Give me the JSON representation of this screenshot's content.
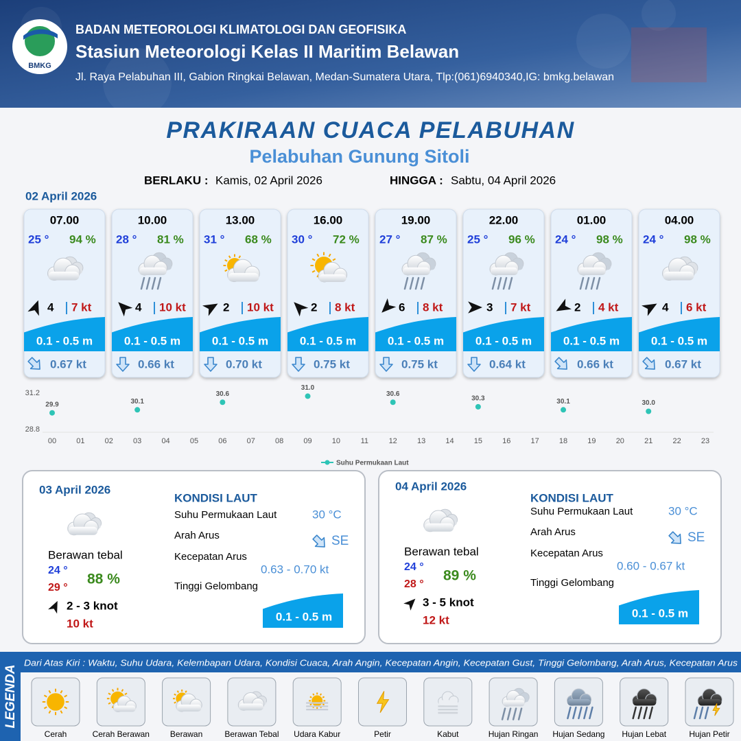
{
  "header": {
    "logo_text": "BMKG",
    "agency": "BADAN METEOROLOGI KLIMATOLOGI DAN GEOFISIKA",
    "station": "Stasiun Meteorologi Kelas II Maritim Belawan",
    "address": "Jl. Raya Pelabuhan III, Gabion Ringkai Belawan, Medan-Sumatera Utara, Tlp:(061)6940340,IG: bmkg.belawan"
  },
  "title": "PRAKIRAAN CUACA PELABUHAN",
  "subtitle": "Pelabuhan Gunung Sitoli",
  "valid_from_label": "BERLAKU :",
  "valid_from": "Kamis, 02 April 2026",
  "valid_to_label": "HINGGA :",
  "valid_to": "Sabtu, 04 April 2026",
  "forecast_date": "02 April 2026",
  "forecasts": [
    {
      "time": "07.00",
      "temp": "25 °",
      "humidity": "94 %",
      "wind": "4",
      "gust": "7 kt",
      "wave": "0.1 - 0.5 m",
      "current": "0.67 kt"
    },
    {
      "time": "10.00",
      "temp": "28 °",
      "humidity": "81 %",
      "wind": "4",
      "gust": "10 kt",
      "wave": "0.1 - 0.5 m",
      "current": "0.66 kt"
    },
    {
      "time": "13.00",
      "temp": "31 °",
      "humidity": "68 %",
      "wind": "2",
      "gust": "10 kt",
      "wave": "0.1 - 0.5 m",
      "current": "0.70 kt"
    },
    {
      "time": "16.00",
      "temp": "30 °",
      "humidity": "72 %",
      "wind": "2",
      "gust": "8 kt",
      "wave": "0.1 - 0.5 m",
      "current": "0.75 kt"
    },
    {
      "time": "19.00",
      "temp": "27 °",
      "humidity": "87 %",
      "wind": "6",
      "gust": "8 kt",
      "wave": "0.1 - 0.5 m",
      "current": "0.75 kt"
    },
    {
      "time": "22.00",
      "temp": "25 °",
      "humidity": "96 %",
      "wind": "3",
      "gust": "7 kt",
      "wave": "0.1 - 0.5 m",
      "current": "0.64 kt"
    },
    {
      "time": "01.00",
      "temp": "24 °",
      "humidity": "98 %",
      "wind": "2",
      "gust": "4 kt",
      "wave": "0.1 - 0.5 m",
      "current": "0.66 kt"
    },
    {
      "time": "04.00",
      "temp": "24 °",
      "humidity": "98 %",
      "wind": "4",
      "gust": "6 kt",
      "wave": "0.1 - 0.5 m",
      "current": "0.67 kt"
    }
  ],
  "chart_data": {
    "type": "scatter",
    "x": [
      0,
      3,
      6,
      9,
      12,
      15,
      18,
      21
    ],
    "series": [
      {
        "name": "Suhu Permukaan Laut",
        "color": "#2ec4b6",
        "values": [
          29.9,
          30.1,
          30.6,
          31.0,
          30.6,
          30.3,
          30.1,
          30.0
        ],
        "value_labels": [
          "29.9",
          "30.1",
          "30.6",
          "31.0",
          "30.6",
          "30.3",
          "30.1",
          "30.0"
        ]
      }
    ],
    "xlim": [
      0,
      23
    ],
    "xticks": [
      {
        "value": 0,
        "label": "00"
      },
      {
        "value": 1,
        "label": "01"
      },
      {
        "value": 2,
        "label": "02"
      },
      {
        "value": 3,
        "label": "03"
      },
      {
        "value": 4,
        "label": "04"
      },
      {
        "value": 5,
        "label": "05"
      },
      {
        "value": 6,
        "label": "06"
      },
      {
        "value": 7,
        "label": "07"
      },
      {
        "value": 8,
        "label": "08"
      },
      {
        "value": 9,
        "label": "09"
      },
      10,
      11,
      12,
      13,
      14,
      15,
      16,
      17,
      18,
      19,
      20,
      21,
      22,
      23
    ],
    "ylim": [
      28.8,
      31.2
    ],
    "yticks": [
      28.8,
      31.2
    ],
    "grid": false,
    "legend": "bottom"
  },
  "days": [
    {
      "date": "03 April 2026",
      "condition": "Berawan tebal",
      "temp_min": "24 °",
      "temp_max": "29 °",
      "humidity": "88 %",
      "wind": "2  - 3 knot",
      "gust": "10 kt",
      "heading": "KONDISI LAUT",
      "sst_label": "Suhu Permukaan Laut",
      "sst": "30 °C",
      "current_dir_label": "Arah Arus",
      "current_dir": "SE",
      "current_speed_label": "Kecepatan Arus",
      "current_speed": "0.63 - 0.70 kt",
      "wave_label": "Tinggi Gelombang",
      "wave": "0.1 - 0.5 m"
    },
    {
      "date": "04 April 2026",
      "condition": "Berawan tebal",
      "temp_min": "24 °",
      "temp_max": "28 °",
      "humidity": "89 %",
      "wind": "3  - 5 knot",
      "gust": "12 kt",
      "heading": "KONDISI LAUT",
      "sst_label": "Suhu Permukaan Laut",
      "sst": "30 °C",
      "current_dir_label": "Arah Arus",
      "current_dir": "SE",
      "current_speed_label": "Kecepatan Arus",
      "current_speed": "0.60  - 0.67 kt",
      "wave_label": "Tinggi Gelombang",
      "wave": "0.1 - 0.5 m"
    }
  ],
  "legend": {
    "title": "LEGENDA",
    "description": "Dari Atas Kiri : Waktu, Suhu Udara, Kelembapan Udara, Kondisi Cuaca, Arah Angin, Kecepatan Angin, Kecepatan Gust, Tinggi Gelombang, Arah Arus, Kecepatan Arus",
    "items": [
      "Cerah",
      "Cerah Berawan",
      "Berawan",
      "Berawan Tebal",
      "Udara Kabur",
      "Petir",
      "Kabut",
      "Hujan Ringan",
      "Hujan Sedang",
      "Hujan Lebat",
      "Hujan Petir"
    ]
  }
}
